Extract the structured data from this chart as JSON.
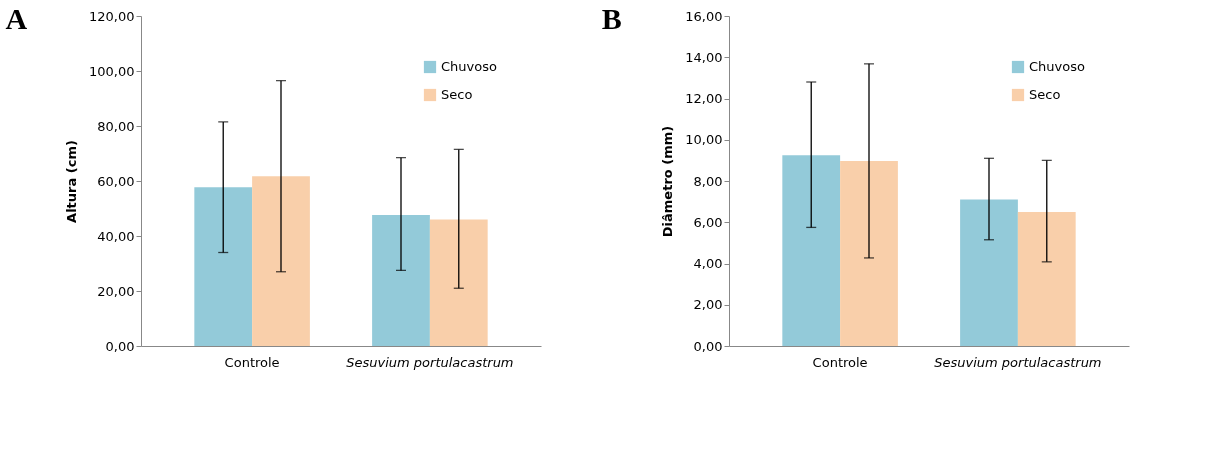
{
  "chart_data": [
    {
      "type": "bar",
      "title": "A",
      "ylabel": "Altura (cm)",
      "categories": [
        "Controle",
        "Sesuvium portulacastrum"
      ],
      "series": [
        {
          "name": "Chuvoso",
          "color": "#93cad9",
          "values": [
            57.7,
            47.6
          ],
          "errors": [
            [
              34.0,
              81.5
            ],
            [
              27.5,
              68.5
            ]
          ]
        },
        {
          "name": "Seco",
          "color": "#f9cfaa",
          "values": [
            61.7,
            46.0
          ],
          "errors": [
            [
              27.0,
              96.5
            ],
            [
              21.0,
              71.5
            ]
          ]
        }
      ],
      "ylim": [
        0,
        120
      ],
      "yticks": [
        {
          "value": 0,
          "label": "0,00"
        },
        {
          "value": 20,
          "label": "20,00"
        },
        {
          "value": 40,
          "label": "40,00"
        },
        {
          "value": 60,
          "label": "60,00"
        },
        {
          "value": 80,
          "label": "80,00"
        },
        {
          "value": 100,
          "label": "100,00"
        },
        {
          "value": 120,
          "label": "120,00"
        }
      ],
      "grid": false,
      "legend": "top right"
    },
    {
      "type": "bar",
      "title": "B",
      "ylabel": "Diâmetro (mm)",
      "categories": [
        "Controle",
        "Sesuvium portulacastrum"
      ],
      "series": [
        {
          "name": "Chuvoso",
          "color": "#93cad9",
          "values": [
            9.25,
            7.1
          ],
          "errors": [
            [
              5.75,
              12.8
            ],
            [
              5.15,
              9.1
            ]
          ]
        },
        {
          "name": "Seco",
          "color": "#f9cfaa",
          "values": [
            8.97,
            6.5
          ],
          "errors": [
            [
              4.27,
              13.68
            ],
            [
              4.08,
              9.0
            ]
          ]
        }
      ],
      "ylim": [
        0,
        16
      ],
      "yticks": [
        {
          "value": 0,
          "label": "0,00"
        },
        {
          "value": 2,
          "label": "2,00"
        },
        {
          "value": 4,
          "label": "4,00"
        },
        {
          "value": 6,
          "label": "6,00"
        },
        {
          "value": 8,
          "label": "8,00"
        },
        {
          "value": 10,
          "label": "10,00"
        },
        {
          "value": 12,
          "label": "12,00"
        },
        {
          "value": 14,
          "label": "14,00"
        },
        {
          "value": 16,
          "label": "16,00"
        }
      ],
      "grid": false,
      "legend": "top right"
    }
  ]
}
